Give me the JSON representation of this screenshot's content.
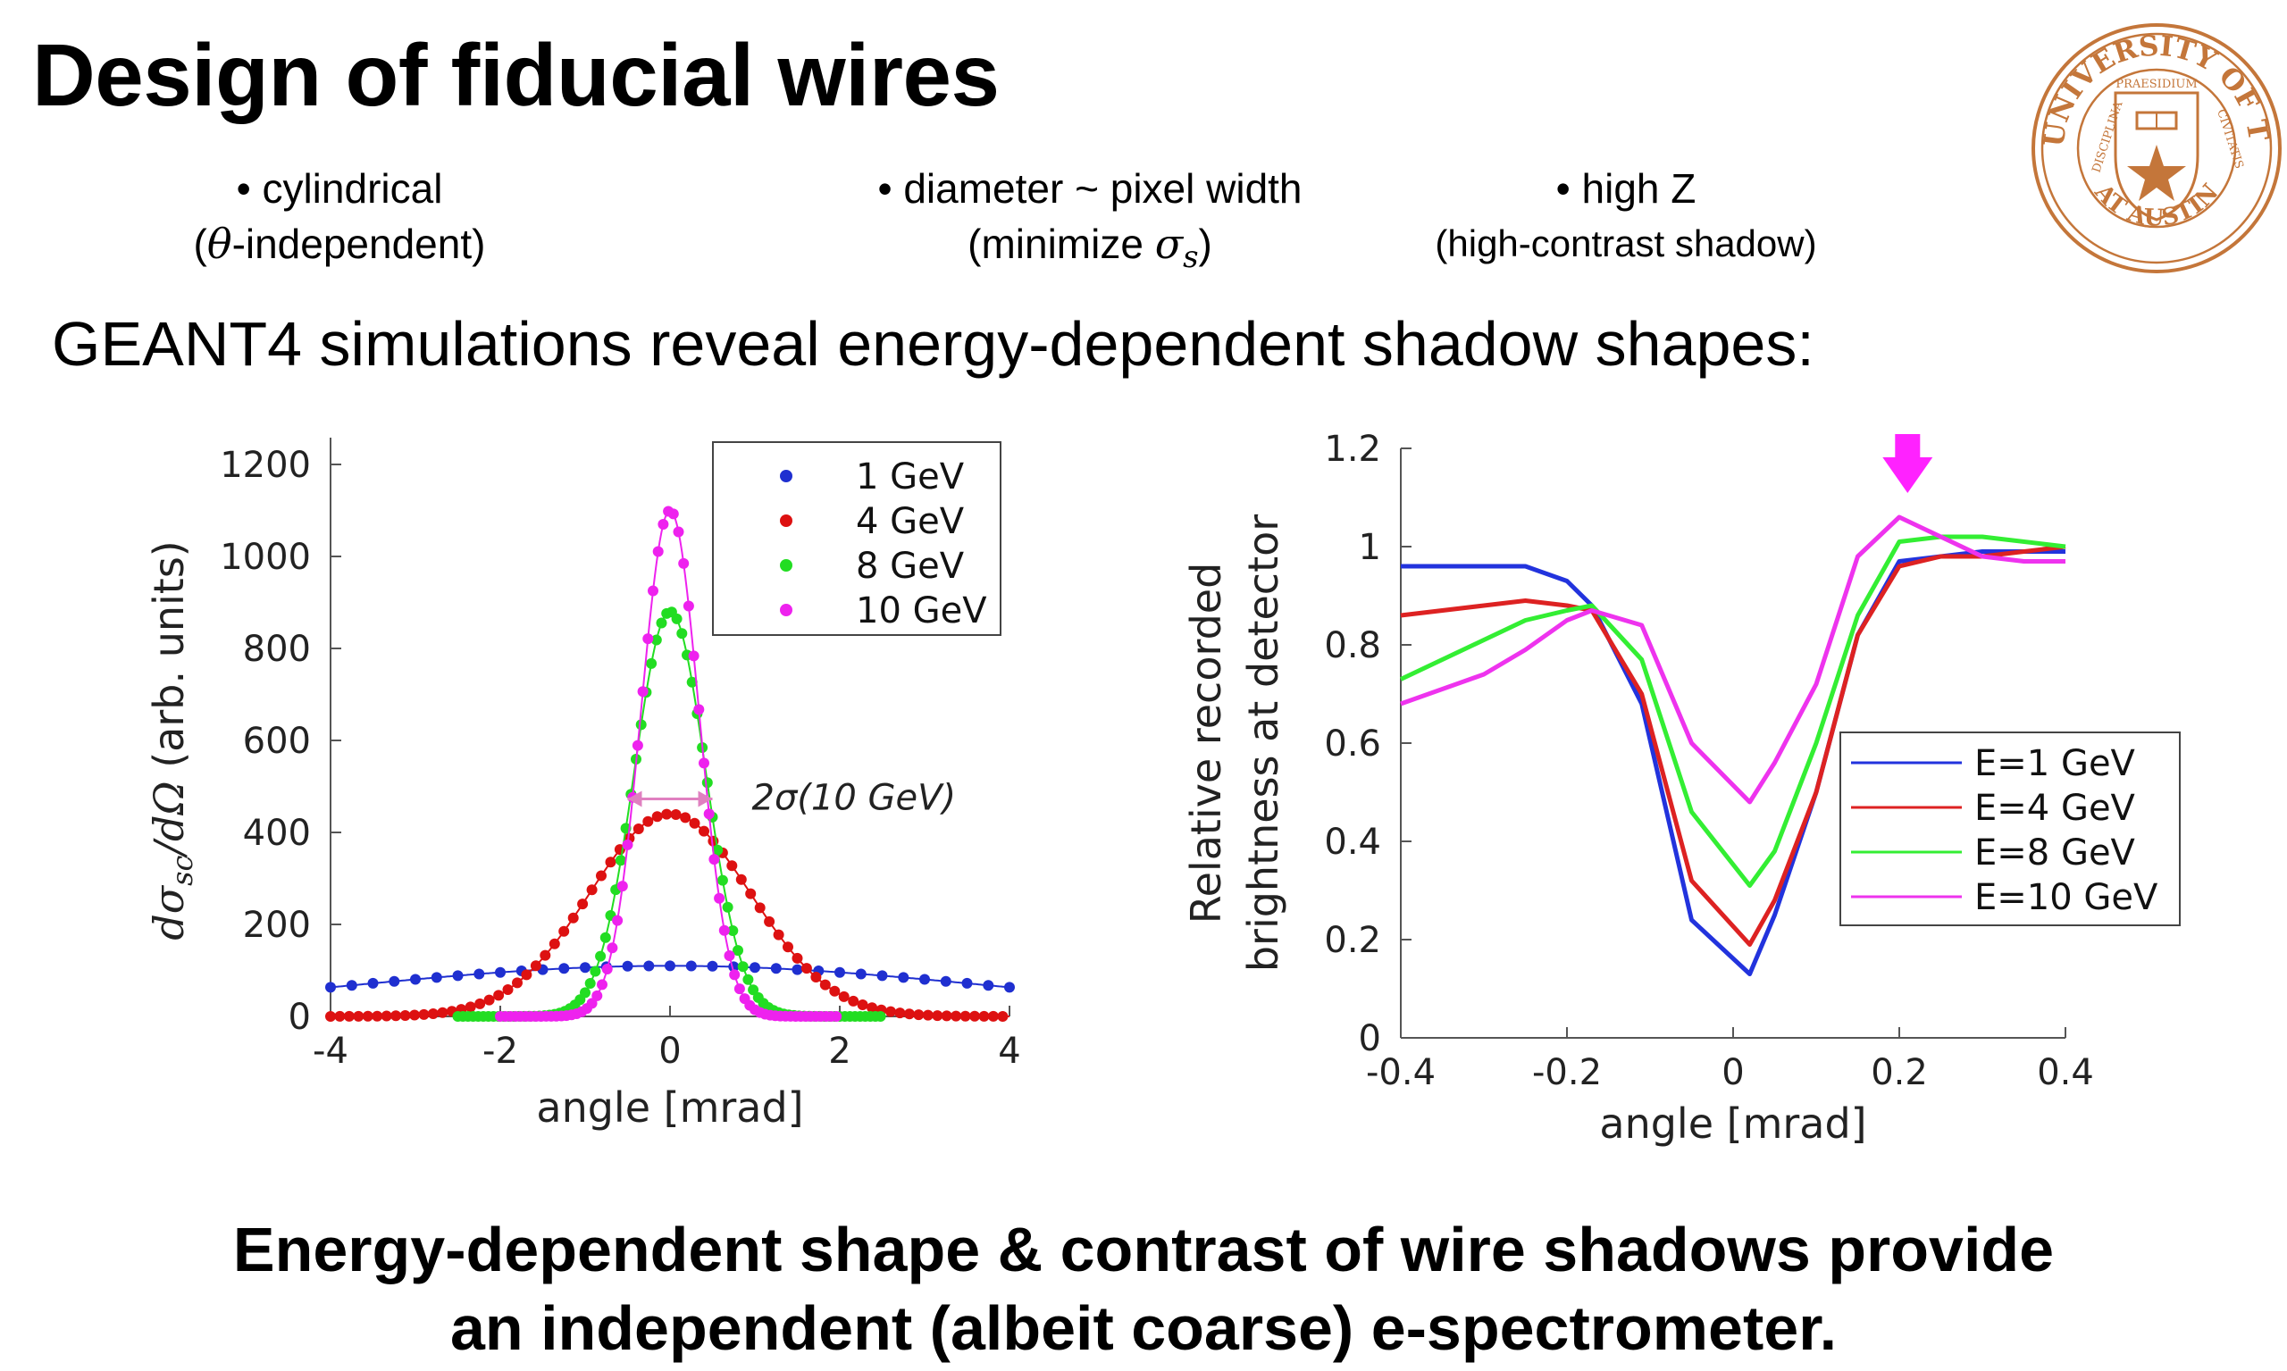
{
  "slide": {
    "title": "Design of fiducial wires",
    "bullets": [
      {
        "line1": "• cylindrical",
        "line2_pre": "(",
        "line2_math": "θ",
        "line2_post": "-independent)"
      },
      {
        "line1": "• diameter ~ pixel width",
        "line2_pre": "(minimize ",
        "line2_math": "σ",
        "line2_sub": "s",
        "line2_post": ")"
      },
      {
        "line1": "• high Z",
        "line2_pre": "(high-contrast shadow)",
        "line2_math": "",
        "line2_post": ""
      }
    ],
    "lead": "GEANT4 simulations reveal energy-dependent shadow shapes:",
    "conclusion_line1": "Energy-dependent shape & contrast of wire shadows provide",
    "conclusion_line2": "an independent (albeit coarse) e-spectrometer.",
    "seal": {
      "outer_text": "THE UNIVERSITY OF TEXAS",
      "bottom_text": "AT AUSTIN",
      "left_text": "DISCIPLINA",
      "right_text": "CIVITATIS",
      "top_small": "PRAESIDIUM",
      "color": "#c4763a"
    }
  },
  "chart_data": [
    {
      "type": "scatter",
      "xlabel": "angle [mrad]",
      "ylabel": "dσ_sc/dΩ (arb. units)",
      "ylabel_parts": {
        "d1": "d",
        "sigma": "σ",
        "sub": "sc",
        "slash": "/",
        "d2": "d",
        "omega": "Ω",
        "rest": " (arb. units)"
      },
      "xlim": [
        -4,
        4
      ],
      "ylim": [
        0,
        1200
      ],
      "xticks": [
        "-4",
        "-2",
        "0",
        "2",
        "4"
      ],
      "yticks": [
        "0",
        "200",
        "400",
        "600",
        "800",
        "1000",
        "1200"
      ],
      "legend_position": "top-right",
      "annotation": {
        "text": "2σ(10 GeV)",
        "x_from": -0.5,
        "x_to": 0.5,
        "y": 500
      },
      "series": [
        {
          "name": "1 GeV",
          "color": "#1f2fd0",
          "amplitude": 110,
          "sigma": 3.8,
          "x_range": [
            -4,
            4
          ]
        },
        {
          "name": "4 GeV",
          "color": "#dd1111",
          "amplitude": 440,
          "sigma": 0.95,
          "x_range": [
            -4,
            4
          ]
        },
        {
          "name": "8 GeV",
          "color": "#22dd22",
          "amplitude": 880,
          "sigma": 0.42,
          "x_range": [
            -2.5,
            2.5
          ]
        },
        {
          "name": "10 GeV",
          "color": "#ee22ee",
          "amplitude": 1100,
          "sigma": 0.34,
          "x_range": [
            -2,
            2
          ]
        }
      ]
    },
    {
      "type": "line",
      "xlabel": "angle [mrad]",
      "ylabel_line1": "Relative recorded",
      "ylabel_line2": "brightness at detector",
      "xlim": [
        -0.4,
        0.4
      ],
      "ylim": [
        0,
        1.2
      ],
      "xticks": [
        "-0.4",
        "-0.2",
        "0",
        "0.2",
        "0.4"
      ],
      "yticks": [
        "0",
        "0.2",
        "0.4",
        "0.6",
        "0.8",
        "1",
        "1.2"
      ],
      "legend_position": "center-right",
      "arrow_marker": {
        "x": 0.21,
        "color": "#ff22ff"
      },
      "series": [
        {
          "name": "E=1 GeV",
          "color": "#2233dd",
          "points": [
            [
              -0.4,
              0.96
            ],
            [
              -0.3,
              0.96
            ],
            [
              -0.25,
              0.96
            ],
            [
              -0.2,
              0.93
            ],
            [
              -0.17,
              0.88
            ],
            [
              -0.11,
              0.68
            ],
            [
              -0.05,
              0.24
            ],
            [
              0.02,
              0.13
            ],
            [
              0.05,
              0.25
            ],
            [
              0.1,
              0.5
            ],
            [
              0.15,
              0.82
            ],
            [
              0.2,
              0.97
            ],
            [
              0.25,
              0.98
            ],
            [
              0.3,
              0.99
            ],
            [
              0.4,
              0.99
            ]
          ]
        },
        {
          "name": "E=4 GeV",
          "color": "#dd2222",
          "points": [
            [
              -0.4,
              0.86
            ],
            [
              -0.3,
              0.88
            ],
            [
              -0.25,
              0.89
            ],
            [
              -0.2,
              0.88
            ],
            [
              -0.17,
              0.87
            ],
            [
              -0.11,
              0.7
            ],
            [
              -0.05,
              0.32
            ],
            [
              0.02,
              0.19
            ],
            [
              0.05,
              0.28
            ],
            [
              0.1,
              0.5
            ],
            [
              0.15,
              0.82
            ],
            [
              0.2,
              0.96
            ],
            [
              0.25,
              0.98
            ],
            [
              0.3,
              0.98
            ],
            [
              0.4,
              1.0
            ]
          ]
        },
        {
          "name": "E=8 GeV",
          "color": "#33ee33",
          "points": [
            [
              -0.4,
              0.73
            ],
            [
              -0.3,
              0.81
            ],
            [
              -0.25,
              0.85
            ],
            [
              -0.2,
              0.87
            ],
            [
              -0.17,
              0.88
            ],
            [
              -0.11,
              0.77
            ],
            [
              -0.05,
              0.46
            ],
            [
              0.02,
              0.31
            ],
            [
              0.05,
              0.38
            ],
            [
              0.1,
              0.6
            ],
            [
              0.15,
              0.86
            ],
            [
              0.2,
              1.01
            ],
            [
              0.25,
              1.02
            ],
            [
              0.3,
              1.02
            ],
            [
              0.4,
              1.0
            ]
          ]
        },
        {
          "name": "E=10 GeV",
          "color": "#ee33ee",
          "points": [
            [
              -0.4,
              0.68
            ],
            [
              -0.3,
              0.74
            ],
            [
              -0.25,
              0.79
            ],
            [
              -0.2,
              0.85
            ],
            [
              -0.17,
              0.87
            ],
            [
              -0.11,
              0.84
            ],
            [
              -0.05,
              0.6
            ],
            [
              0.02,
              0.48
            ],
            [
              0.05,
              0.56
            ],
            [
              0.1,
              0.72
            ],
            [
              0.15,
              0.98
            ],
            [
              0.2,
              1.06
            ],
            [
              0.25,
              1.02
            ],
            [
              0.3,
              0.98
            ],
            [
              0.35,
              0.97
            ],
            [
              0.4,
              0.97
            ]
          ]
        }
      ]
    }
  ]
}
